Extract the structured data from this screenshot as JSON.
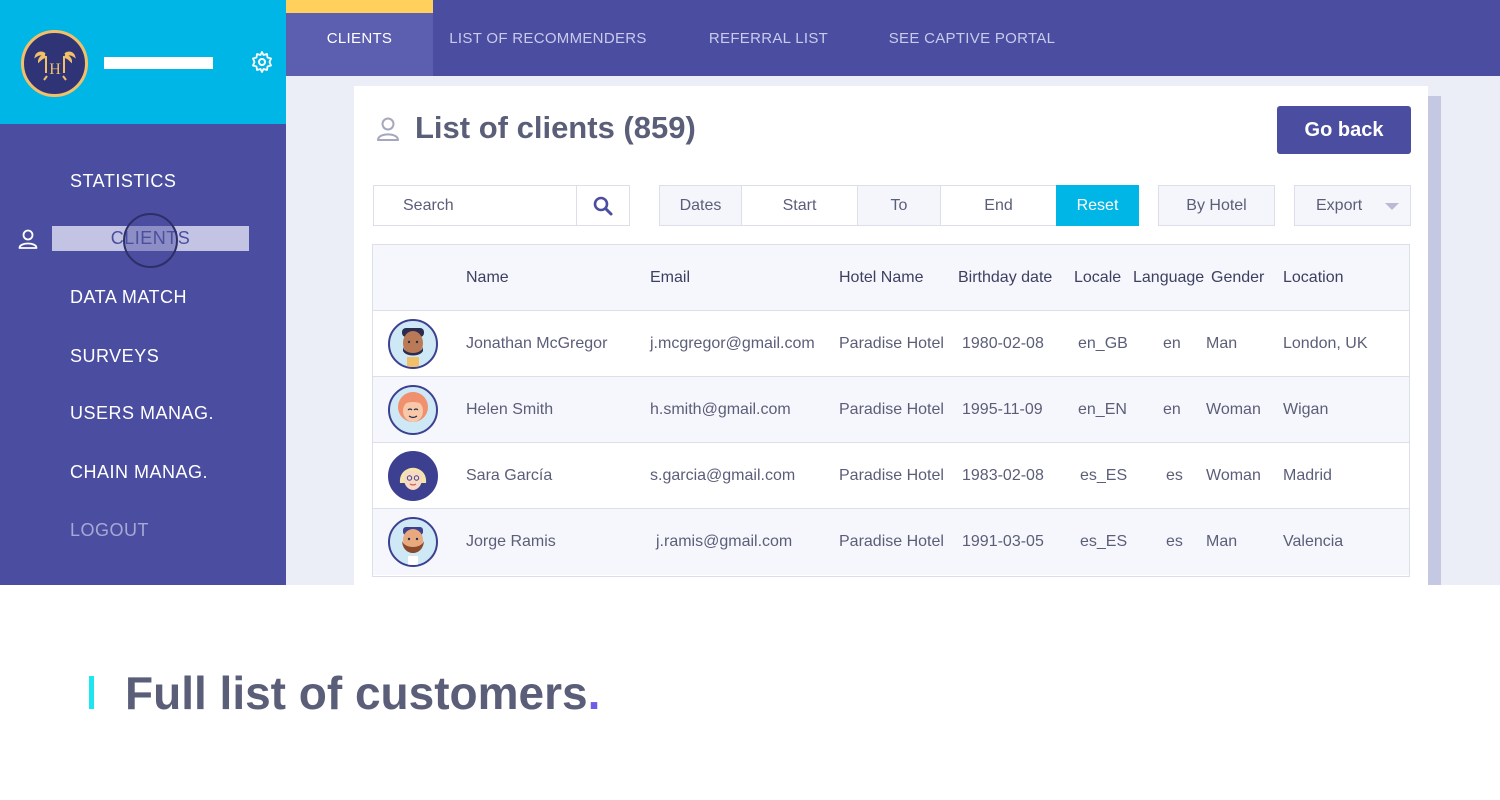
{
  "colors": {
    "brand": "#4b4ea0",
    "accent": "#00b6e6",
    "highlight": "#ffd15c",
    "caption_dot": "#6c5ce7"
  },
  "sidebar": {
    "logo": "palm-tree-hotel-logo",
    "settings_icon": "gear-icon",
    "items": [
      {
        "label": "STATISTICS"
      },
      {
        "label": "CLIENTS",
        "icon": "user-icon",
        "active": true
      },
      {
        "label": "DATA MATCH"
      },
      {
        "label": "SURVEYS"
      },
      {
        "label": "USERS MANAG."
      },
      {
        "label": "CHAIN MANAG."
      },
      {
        "label": "LOGOUT"
      }
    ]
  },
  "topnav": {
    "tabs": [
      {
        "label": "CLIENTS",
        "active": true
      },
      {
        "label": "LIST OF RECOMMENDERS"
      },
      {
        "label": "REFERRAL LIST"
      },
      {
        "label": "SEE CAPTIVE PORTAL"
      }
    ]
  },
  "page": {
    "title": "List of clients (859)",
    "title_icon": "user-icon",
    "go_back_label": "Go back"
  },
  "filters": {
    "search_placeholder": "Search",
    "search_icon": "search-icon",
    "dates_label": "Dates",
    "start_placeholder": "Start",
    "to_label": "To",
    "end_placeholder": "End",
    "reset_label": "Reset",
    "by_hotel_label": "By Hotel",
    "export_label": "Export"
  },
  "table": {
    "columns": [
      "Name",
      "Email",
      "Hotel Name",
      "Birthday date",
      "Locale",
      "Language",
      "Gender",
      "Location"
    ],
    "rows": [
      {
        "avatar": "man-avatar-dark-hair",
        "name": "Jonathan McGregor",
        "email": "j.mcgregor@gmail.com",
        "hotel": "Paradise Hotel",
        "birthday": "1980-02-08",
        "locale": "en_GB",
        "language": "en",
        "gender": "Man",
        "location": "London, UK"
      },
      {
        "avatar": "woman-avatar-red-hair",
        "name": "Helen Smith",
        "email": "h.smith@gmail.com",
        "hotel": "Paradise Hotel",
        "birthday": "1995-11-09",
        "locale": "en_EN",
        "language": "en",
        "gender": "Woman",
        "location": "Wigan"
      },
      {
        "avatar": "woman-avatar-blonde-hair",
        "name": "Sara García",
        "email": "s.garcia@gmail.com",
        "hotel": "Paradise Hotel",
        "birthday": "1983-02-08",
        "locale": "es_ES",
        "language": "es",
        "gender": "Woman",
        "location": "Madrid"
      },
      {
        "avatar": "man-avatar-beard",
        "name": "Jorge Ramis",
        "email": "j.ramis@gmail.com",
        "hotel": "Paradise Hotel",
        "birthday": "1991-03-05",
        "locale": "es_ES",
        "language": "es",
        "gender": "Man",
        "location": "Valencia"
      }
    ]
  },
  "caption": {
    "text": "Full list of customers",
    "dot": "."
  }
}
